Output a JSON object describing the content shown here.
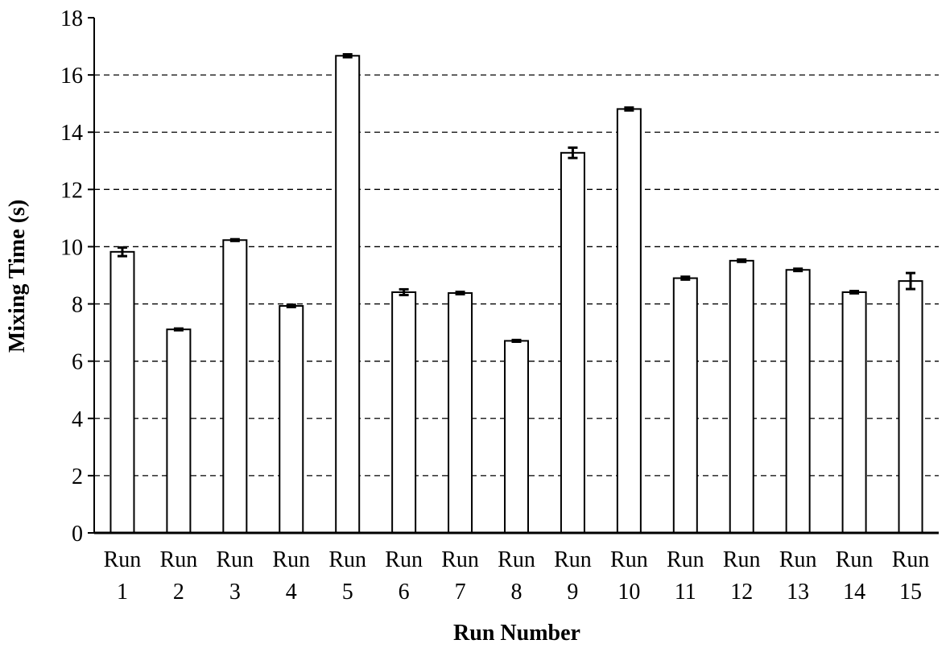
{
  "chart_data": {
    "type": "bar",
    "title": "",
    "xlabel": "Run Number",
    "ylabel": "Mixing Time (s)",
    "ylim": [
      0,
      18
    ],
    "yticks": [
      0,
      2,
      4,
      6,
      8,
      10,
      12,
      14,
      16,
      18
    ],
    "grid": "horizontal dashed",
    "categories": [
      [
        "Run",
        "1"
      ],
      [
        "Run",
        "2"
      ],
      [
        "Run",
        "3"
      ],
      [
        "Run",
        "4"
      ],
      [
        "Run",
        "5"
      ],
      [
        "Run",
        "6"
      ],
      [
        "Run",
        "7"
      ],
      [
        "Run",
        "8"
      ],
      [
        "Run",
        "9"
      ],
      [
        "Run",
        "10"
      ],
      [
        "Run",
        "11"
      ],
      [
        "Run",
        "12"
      ],
      [
        "Run",
        "13"
      ],
      [
        "Run",
        "14"
      ],
      [
        "Run",
        "15"
      ]
    ],
    "values": [
      9.82,
      7.11,
      10.23,
      7.93,
      16.67,
      8.41,
      8.38,
      6.71,
      13.28,
      14.81,
      8.9,
      9.51,
      9.19,
      8.41,
      8.8
    ],
    "errors": [
      0.15,
      0.03,
      0.03,
      0.04,
      0.05,
      0.1,
      0.04,
      0.03,
      0.18,
      0.05,
      0.05,
      0.04,
      0.04,
      0.04,
      0.28
    ],
    "bar_fill": "#ffffff",
    "bar_stroke": "#000000"
  }
}
